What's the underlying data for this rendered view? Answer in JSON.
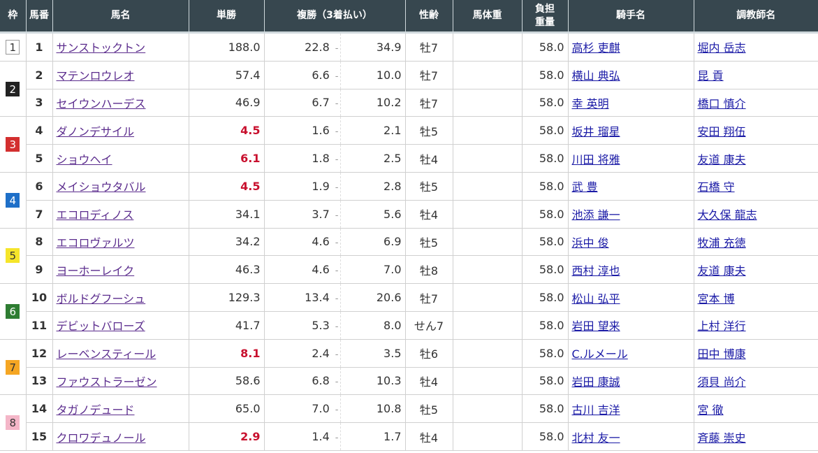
{
  "headers": {
    "waku": "枠",
    "umaban": "馬番",
    "name": "馬名",
    "win": "単勝",
    "place": "複勝（3着払い）",
    "sexage": "性齢",
    "weight": "馬体重",
    "load1": "負担",
    "load2": "重量",
    "jockey": "騎手名",
    "trainer": "調教師名"
  },
  "frames": [
    {
      "num": "1",
      "bg": "#ffffff",
      "fg": "#333333",
      "rows": 1
    },
    {
      "num": "2",
      "bg": "#222222",
      "fg": "#ffffff",
      "rows": 2
    },
    {
      "num": "3",
      "bg": "#d32f2f",
      "fg": "#ffffff",
      "rows": 2
    },
    {
      "num": "4",
      "bg": "#1e6fc8",
      "fg": "#ffffff",
      "rows": 2
    },
    {
      "num": "5",
      "bg": "#f5e52a",
      "fg": "#333333",
      "rows": 2
    },
    {
      "num": "6",
      "bg": "#2e7d32",
      "fg": "#ffffff",
      "rows": 2
    },
    {
      "num": "7",
      "bg": "#f5a623",
      "fg": "#333333",
      "rows": 2
    },
    {
      "num": "8",
      "bg": "#f4b6c8",
      "fg": "#333333",
      "rows": 2
    }
  ],
  "horses": [
    {
      "umaban": "1",
      "name": "サンストックトン",
      "win": "188.0",
      "fav": false,
      "place_min": "22.8",
      "place_max": "34.9",
      "sexage": "牡7",
      "weight": "",
      "load": "58.0",
      "jockey": "高杉 吏麒",
      "trainer": "堀内 岳志"
    },
    {
      "umaban": "2",
      "name": "マテンロウレオ",
      "win": "57.4",
      "fav": false,
      "place_min": "6.6",
      "place_max": "10.0",
      "sexage": "牡7",
      "weight": "",
      "load": "58.0",
      "jockey": "横山 典弘",
      "trainer": "昆 貢"
    },
    {
      "umaban": "3",
      "name": "セイウンハーデス",
      "win": "46.9",
      "fav": false,
      "place_min": "6.7",
      "place_max": "10.2",
      "sexage": "牡7",
      "weight": "",
      "load": "58.0",
      "jockey": "幸 英明",
      "trainer": "橋口 慎介"
    },
    {
      "umaban": "4",
      "name": "ダノンデサイル",
      "win": "4.5",
      "fav": true,
      "place_min": "1.6",
      "place_max": "2.1",
      "sexage": "牡5",
      "weight": "",
      "load": "58.0",
      "jockey": "坂井 瑠星",
      "trainer": "安田 翔伍"
    },
    {
      "umaban": "5",
      "name": "ショウヘイ",
      "win": "6.1",
      "fav": true,
      "place_min": "1.8",
      "place_max": "2.5",
      "sexage": "牡4",
      "weight": "",
      "load": "58.0",
      "jockey": "川田 将雅",
      "trainer": "友道 康夫"
    },
    {
      "umaban": "6",
      "name": "メイショウタバル",
      "win": "4.5",
      "fav": true,
      "place_min": "1.9",
      "place_max": "2.8",
      "sexage": "牡5",
      "weight": "",
      "load": "58.0",
      "jockey": "武 豊",
      "trainer": "石橋 守"
    },
    {
      "umaban": "7",
      "name": "エコロディノス",
      "win": "34.1",
      "fav": false,
      "place_min": "3.7",
      "place_max": "5.6",
      "sexage": "牡4",
      "weight": "",
      "load": "58.0",
      "jockey": "池添 謙一",
      "trainer": "大久保 龍志"
    },
    {
      "umaban": "8",
      "name": "エコロヴァルツ",
      "win": "34.2",
      "fav": false,
      "place_min": "4.6",
      "place_max": "6.9",
      "sexage": "牡5",
      "weight": "",
      "load": "58.0",
      "jockey": "浜中 俊",
      "trainer": "牧浦 充徳"
    },
    {
      "umaban": "9",
      "name": "ヨーホーレイク",
      "win": "46.3",
      "fav": false,
      "place_min": "4.6",
      "place_max": "7.0",
      "sexage": "牡8",
      "weight": "",
      "load": "58.0",
      "jockey": "西村 淳也",
      "trainer": "友道 康夫"
    },
    {
      "umaban": "10",
      "name": "ボルドグフーシュ",
      "win": "129.3",
      "fav": false,
      "place_min": "13.4",
      "place_max": "20.6",
      "sexage": "牡7",
      "weight": "",
      "load": "58.0",
      "jockey": "松山 弘平",
      "trainer": "宮本 博"
    },
    {
      "umaban": "11",
      "name": "デビットバローズ",
      "win": "41.7",
      "fav": false,
      "place_min": "5.3",
      "place_max": "8.0",
      "sexage": "せん7",
      "weight": "",
      "load": "58.0",
      "jockey": "岩田 望来",
      "trainer": "上村 洋行"
    },
    {
      "umaban": "12",
      "name": "レーベンスティール",
      "win": "8.1",
      "fav": true,
      "place_min": "2.4",
      "place_max": "3.5",
      "sexage": "牡6",
      "weight": "",
      "load": "58.0",
      "jockey": "C.ルメール",
      "trainer": "田中 博康"
    },
    {
      "umaban": "13",
      "name": "ファウストラーゼン",
      "win": "58.6",
      "fav": false,
      "place_min": "6.8",
      "place_max": "10.3",
      "sexage": "牡4",
      "weight": "",
      "load": "58.0",
      "jockey": "岩田 康誠",
      "trainer": "須貝 尚介"
    },
    {
      "umaban": "14",
      "name": "タガノデュード",
      "win": "65.0",
      "fav": false,
      "place_min": "7.0",
      "place_max": "10.8",
      "sexage": "牡5",
      "weight": "",
      "load": "58.0",
      "jockey": "古川 吉洋",
      "trainer": "宮 徹"
    },
    {
      "umaban": "15",
      "name": "クロワデュノール",
      "win": "2.9",
      "fav": true,
      "place_min": "1.4",
      "place_max": "1.7",
      "sexage": "牡4",
      "weight": "",
      "load": "58.0",
      "jockey": "北村 友一",
      "trainer": "斉藤 崇史"
    }
  ],
  "place_separator": "-"
}
